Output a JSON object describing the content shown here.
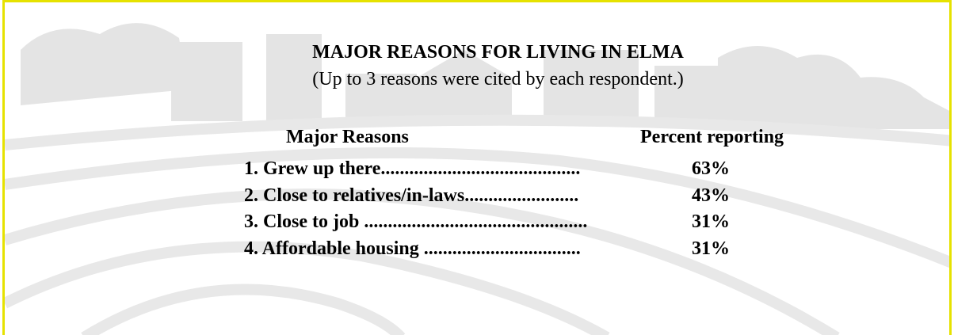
{
  "header": {
    "title": "MAJOR REASONS FOR LIVING IN ELMA",
    "subtitle": "(Up to 3 reasons were cited by each respondent.)"
  },
  "table": {
    "columns": [
      "Major Reasons",
      "Percent reporting"
    ],
    "rows": [
      [
        "1. Grew up there..........................................",
        "63%"
      ],
      [
        "2. Close to relatives/in-laws........................",
        "43%"
      ],
      [
        "3. Close to job ...............................................",
        "31%"
      ],
      [
        "4. Affordable housing .................................",
        "31%"
      ]
    ]
  }
}
